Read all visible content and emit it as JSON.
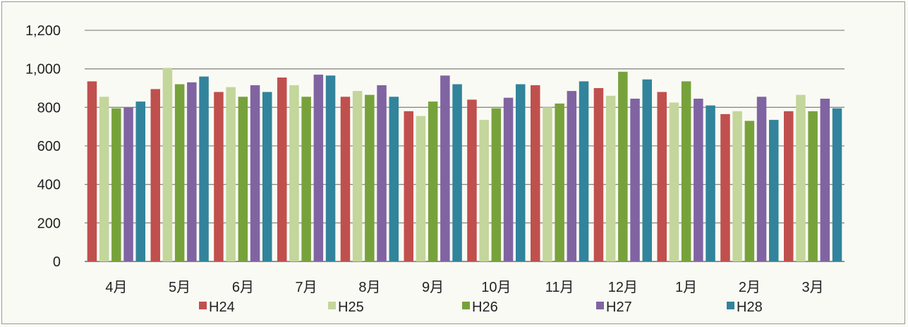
{
  "chart_data": {
    "type": "bar",
    "title": "",
    "xlabel": "",
    "ylabel": "",
    "ylim": [
      0,
      1200
    ],
    "yticks": [
      0,
      200,
      400,
      600,
      800,
      1000,
      1200
    ],
    "ytick_labels": [
      "0",
      "200",
      "400",
      "600",
      "800",
      "1,000",
      "1,200"
    ],
    "grid": true,
    "legend_position": "bottom",
    "categories": [
      "4月",
      "5月",
      "6月",
      "7月",
      "8月",
      "9月",
      "10月",
      "11月",
      "12月",
      "1月",
      "2月",
      "3月"
    ],
    "series": [
      {
        "name": "H24",
        "color": "#c0504d",
        "values": [
          935,
          895,
          880,
          955,
          855,
          780,
          840,
          915,
          900,
          880,
          765,
          780
        ]
      },
      {
        "name": "H25",
        "color": "#c3d69b",
        "values": [
          855,
          1005,
          905,
          915,
          885,
          755,
          735,
          800,
          860,
          825,
          780,
          865
        ]
      },
      {
        "name": "H26",
        "color": "#77a23b",
        "values": [
          795,
          920,
          855,
          855,
          865,
          830,
          795,
          820,
          985,
          935,
          730,
          780
        ]
      },
      {
        "name": "H27",
        "color": "#8064a2",
        "values": [
          800,
          930,
          915,
          970,
          915,
          965,
          850,
          885,
          845,
          845,
          855,
          845
        ]
      },
      {
        "name": "H28",
        "color": "#31849b",
        "values": [
          830,
          960,
          880,
          965,
          855,
          920,
          920,
          935,
          945,
          810,
          735,
          795
        ]
      }
    ]
  }
}
